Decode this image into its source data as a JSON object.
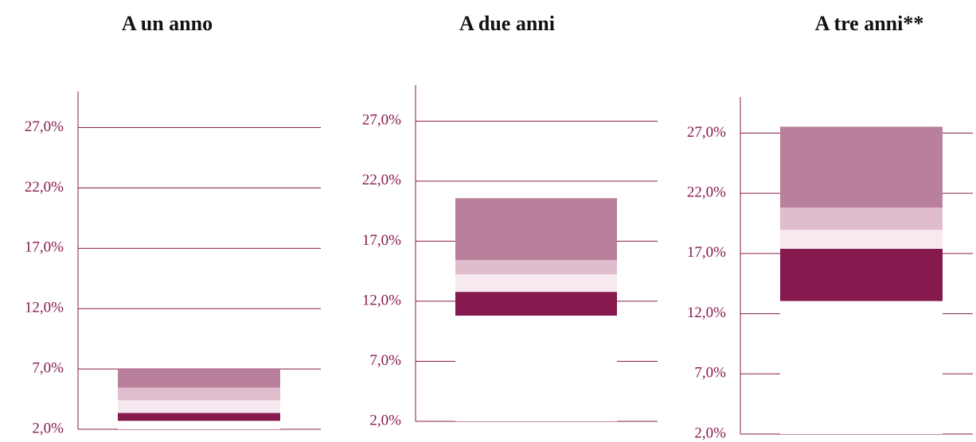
{
  "chart_data": [
    {
      "type": "bar",
      "stacked": true,
      "title": "A un anno",
      "ylim": [
        2,
        30
      ],
      "yticks": [
        {
          "value": 2,
          "label": "2,0%"
        },
        {
          "value": 7,
          "label": "7,0%"
        },
        {
          "value": 12,
          "label": "12,0%"
        },
        {
          "value": 17,
          "label": "17,0%"
        },
        {
          "value": 22,
          "label": "22,0%"
        },
        {
          "value": 27,
          "label": "27,0%"
        }
      ],
      "grid": true,
      "series": [
        {
          "color": "#ffffff",
          "values": [
            0.7
          ]
        },
        {
          "color": "#861a4f",
          "values": [
            0.65
          ]
        },
        {
          "color": "#f6e9f0",
          "values": [
            1.05
          ]
        },
        {
          "color": "#dfbdcd",
          "values": [
            1.05
          ]
        },
        {
          "color": "#b9809c",
          "values": [
            1.55
          ]
        }
      ]
    },
    {
      "type": "bar",
      "stacked": true,
      "title": "A due anni",
      "ylim": [
        2,
        30
      ],
      "yticks": [
        {
          "value": 2,
          "label": "2,0%"
        },
        {
          "value": 7,
          "label": "7,0%"
        },
        {
          "value": 12,
          "label": "12,0%"
        },
        {
          "value": 17,
          "label": "17,0%"
        },
        {
          "value": 22,
          "label": "22,0%"
        },
        {
          "value": 27,
          "label": "27,0%"
        }
      ],
      "grid": true,
      "series": [
        {
          "color": "#ffffff",
          "values": [
            8.8
          ]
        },
        {
          "color": "#861a4f",
          "values": [
            1.98
          ]
        },
        {
          "color": "#f6e9f0",
          "values": [
            1.46
          ]
        },
        {
          "color": "#dfbdcd",
          "values": [
            1.19
          ]
        },
        {
          "color": "#b9809c",
          "values": [
            5.15
          ]
        }
      ]
    },
    {
      "type": "bar",
      "stacked": true,
      "title": "A tre anni**",
      "ylim": [
        2,
        30
      ],
      "yticks": [
        {
          "value": 2,
          "label": "2,0%"
        },
        {
          "value": 7,
          "label": "7,0%"
        },
        {
          "value": 12,
          "label": "12,0%"
        },
        {
          "value": 17,
          "label": "17,0%"
        },
        {
          "value": 22,
          "label": "22,0%"
        },
        {
          "value": 27,
          "label": "27,0%"
        }
      ],
      "grid": true,
      "series": [
        {
          "color": "#ffffff",
          "values": [
            11.05
          ]
        },
        {
          "color": "#861a4f",
          "values": [
            4.34
          ]
        },
        {
          "color": "#f6e9f0",
          "values": [
            1.58
          ]
        },
        {
          "color": "#dfbdcd",
          "values": [
            1.85
          ]
        },
        {
          "color": "#b9809c",
          "values": [
            6.71
          ]
        }
      ]
    }
  ]
}
